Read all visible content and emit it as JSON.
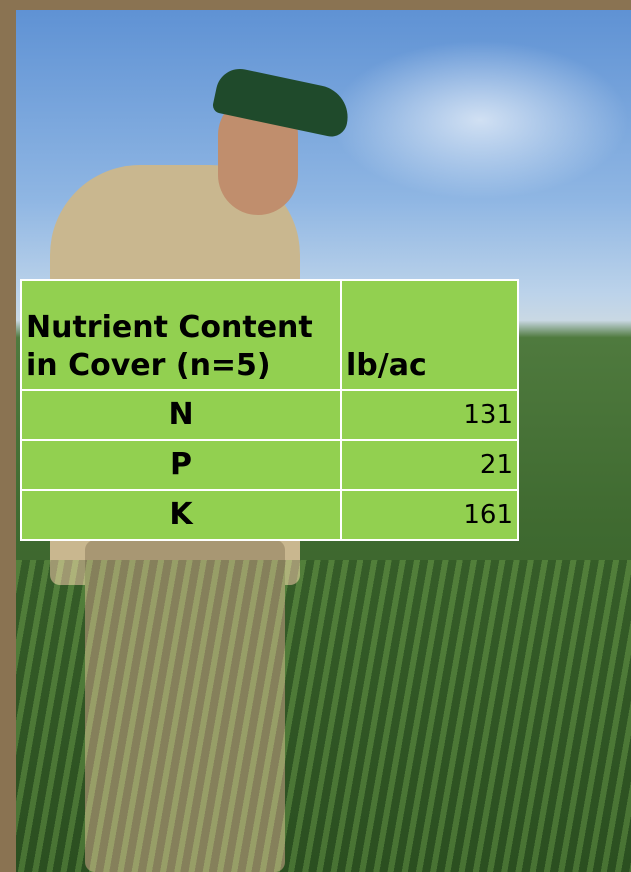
{
  "table": {
    "header": [
      "Nutrient Content in Cover (n=5)",
      "lb/ac"
    ],
    "rows": [
      [
        "N",
        131
      ],
      [
        "P",
        21
      ],
      [
        "K",
        161
      ]
    ]
  }
}
